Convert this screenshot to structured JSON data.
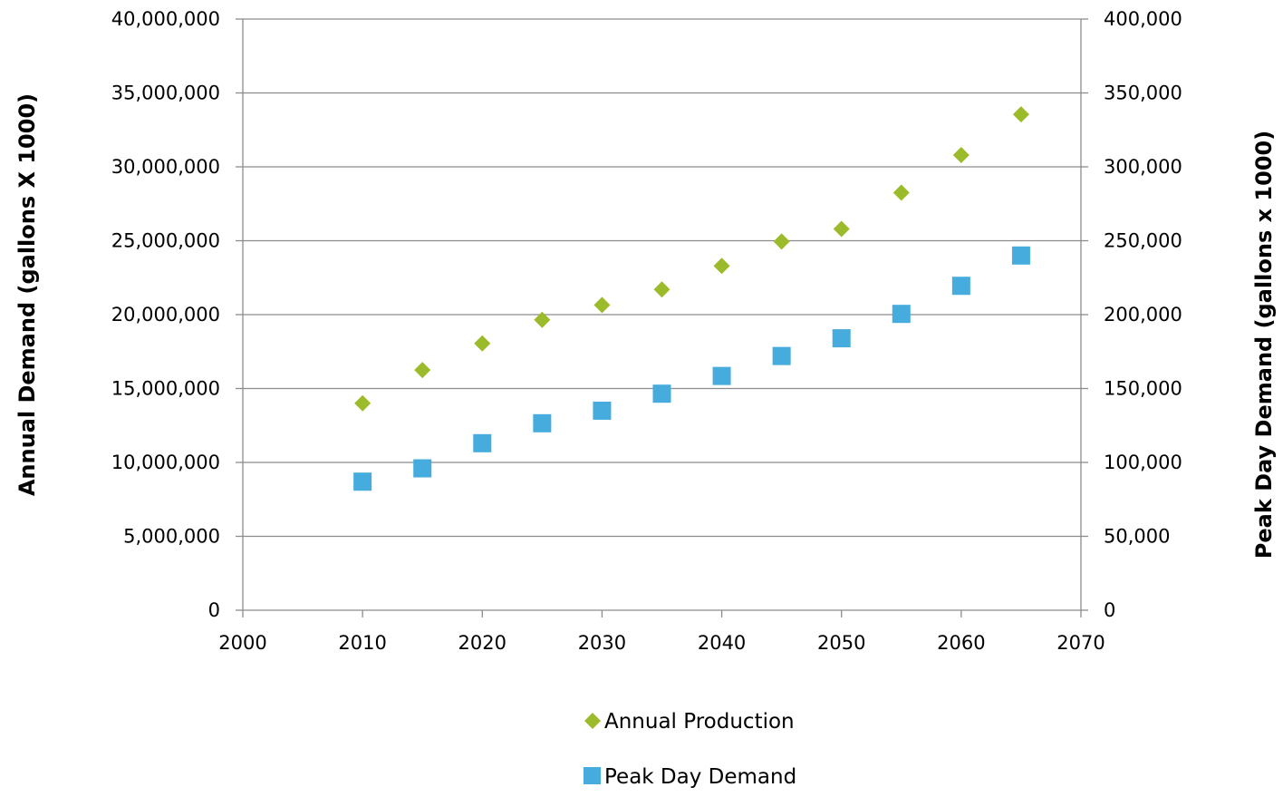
{
  "chart_data": {
    "type": "scatter",
    "title": "",
    "xlabel": "",
    "ylabel": "Annual Demand (gallons X 1000)",
    "y2label": "Peak Day Demand (gallons x 1000)",
    "xlim": [
      2000,
      2070
    ],
    "ylim": [
      0,
      40000000
    ],
    "y2lim": [
      0,
      400000
    ],
    "x_ticks": [
      "2000",
      "2010",
      "2020",
      "2030",
      "2040",
      "2050",
      "2060",
      "2070"
    ],
    "y_ticks": [
      "0",
      "5,000,000",
      "10,000,000",
      "15,000,000",
      "20,000,000",
      "25,000,000",
      "30,000,000",
      "35,000,000",
      "40,000,000"
    ],
    "y2_ticks": [
      "0",
      "50,000",
      "100,000",
      "150,000",
      "200,000",
      "250,000",
      "300,000",
      "350,000",
      "400,000"
    ],
    "grid": "horizontal",
    "legend_position": "bottom",
    "series": [
      {
        "name": "Annual Production",
        "axis": "left",
        "marker": "diamond",
        "color": "#9BBB2A",
        "x": [
          2010,
          2015,
          2020,
          2025,
          2030,
          2035,
          2040,
          2045,
          2050,
          2055,
          2060,
          2065
        ],
        "y": [
          14000000,
          16250000,
          18050000,
          19650000,
          20650000,
          21700000,
          23300000,
          24950000,
          25800000,
          28250000,
          30800000,
          33550000
        ]
      },
      {
        "name": "Peak Day Demand",
        "axis": "right",
        "marker": "square",
        "color": "#45ACDD",
        "x": [
          2010,
          2015,
          2020,
          2025,
          2030,
          2035,
          2040,
          2045,
          2050,
          2055,
          2060,
          2065
        ],
        "y": [
          87000,
          96000,
          113000,
          126500,
          135000,
          146500,
          158500,
          172000,
          184000,
          200500,
          219500,
          240000
        ]
      }
    ]
  }
}
